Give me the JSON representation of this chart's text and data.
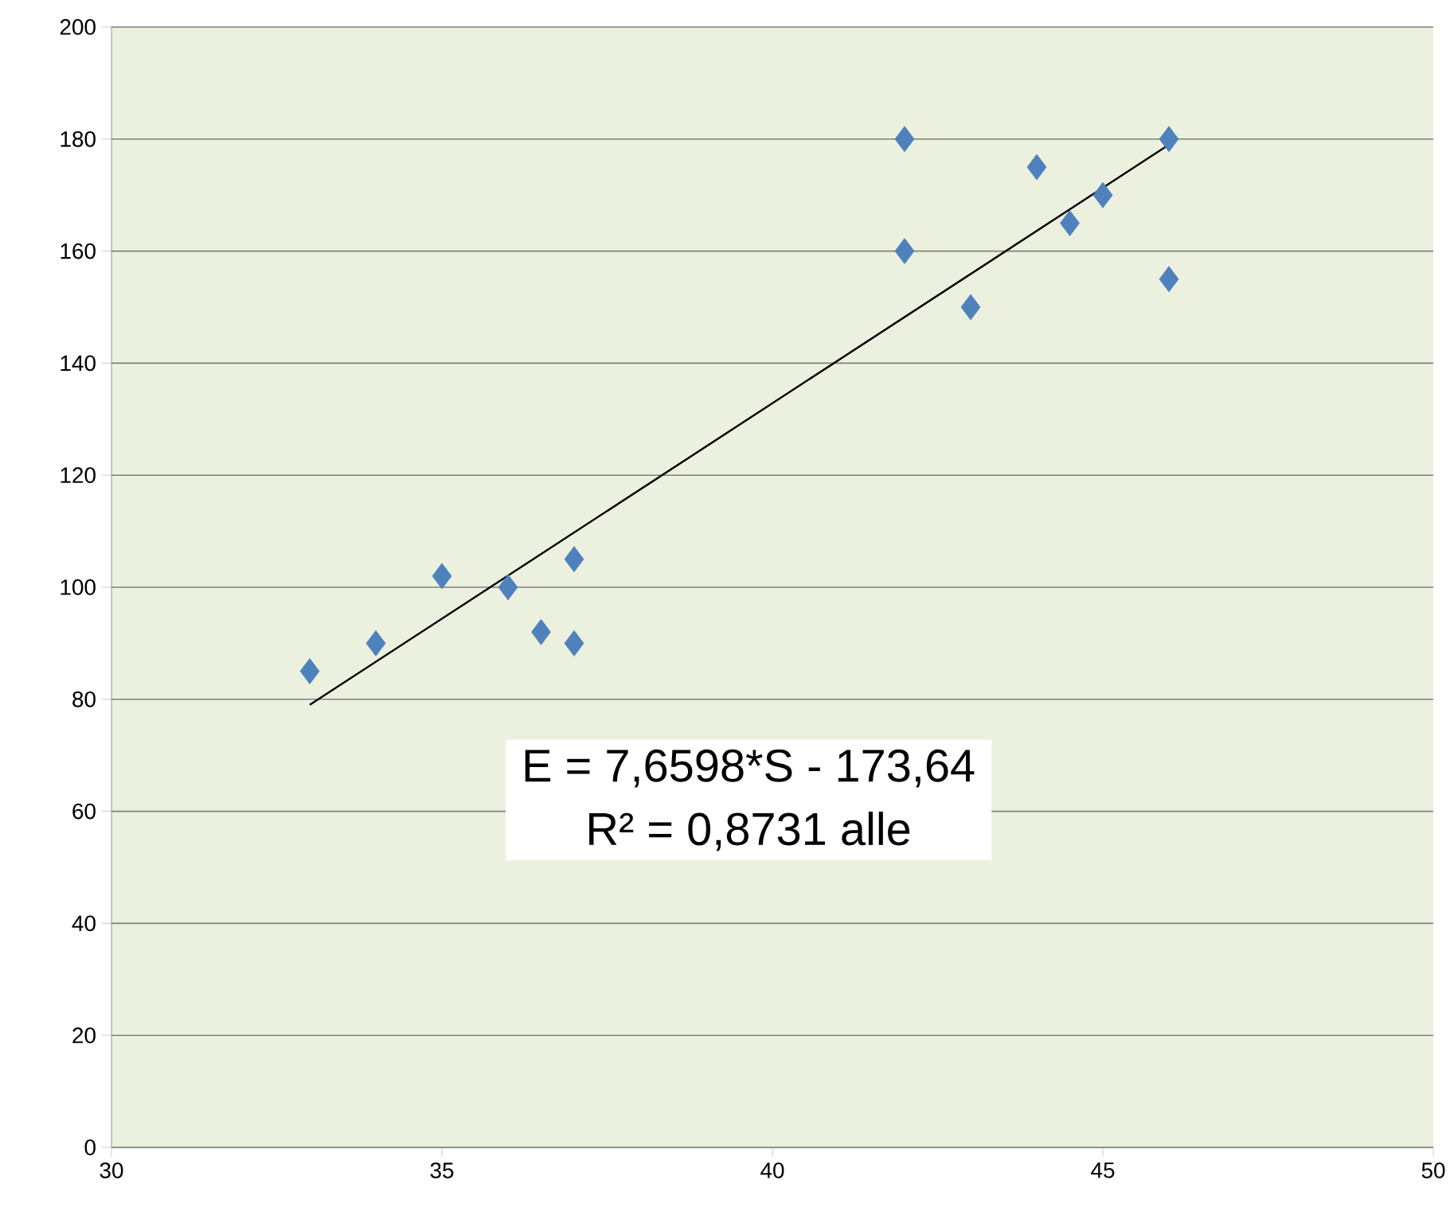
{
  "chart_data": {
    "type": "scatter",
    "series": [
      {
        "color": "#4f81bd",
        "marker": "diamond",
        "x": [
          33,
          34,
          35,
          36,
          36.5,
          37,
          37,
          42,
          42,
          43,
          44,
          44.5,
          45,
          46,
          46
        ],
        "values": [
          85,
          90,
          102,
          100,
          92,
          105,
          90,
          180,
          160,
          150,
          175,
          165,
          170,
          180,
          155
        ]
      },
      {
        "type": "line",
        "color": "#000000",
        "marker": "none",
        "x": [
          33,
          46
        ],
        "values": [
          79,
          179
        ]
      }
    ],
    "xlim": [
      30,
      50
    ],
    "ylim": [
      0,
      200
    ],
    "xticks": [
      30,
      35,
      40,
      45,
      50
    ],
    "yticks": [
      0,
      20,
      40,
      60,
      80,
      100,
      120,
      140,
      160,
      180,
      200
    ],
    "grid": "y",
    "annotations": [
      "E = 7,6598*S - 173,64",
      "R² = 0,8731 alle"
    ]
  }
}
